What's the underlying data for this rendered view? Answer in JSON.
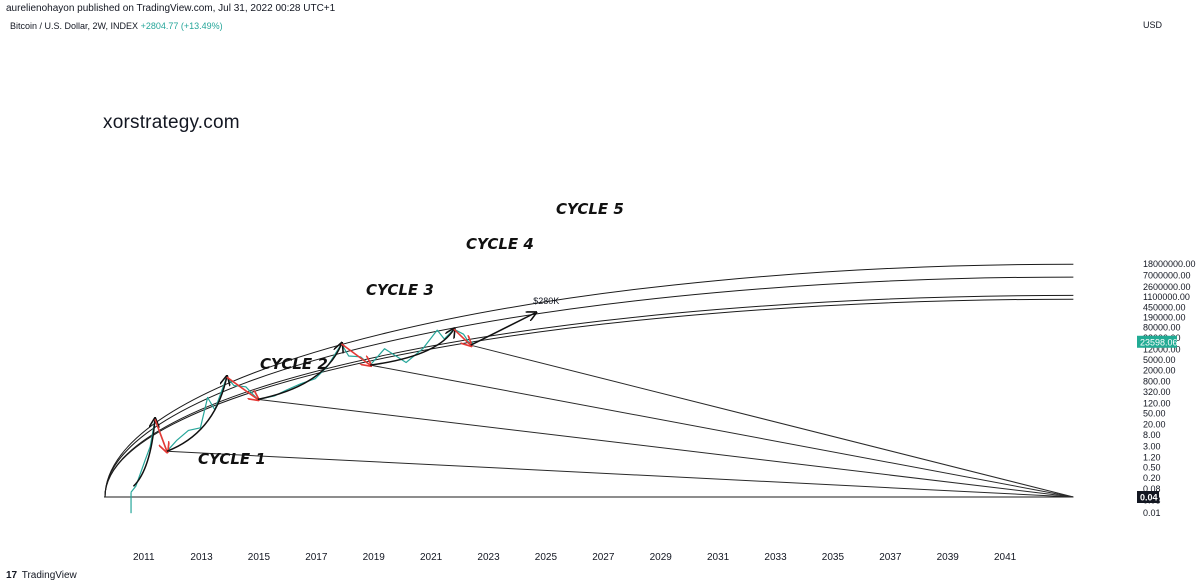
{
  "header": {
    "publisher_line": "aurelienohayon published on TradingView.com, Jul 31, 2022 00:28 UTC+1",
    "symbol": "Bitcoin / U.S. Dollar, 2W, INDEX",
    "change": "+2804.77 (+13.49%)"
  },
  "watermark": "xorstrategy.com",
  "footer": {
    "logo": "17",
    "brand": "TradingView"
  },
  "chart_data": {
    "type": "line",
    "currency": "USD",
    "y_scale": "log",
    "y_ticks": [
      "18000000.00",
      "7000000.00",
      "2600000.00",
      "1100000.00",
      "450000.00",
      "190000.00",
      "80000.00",
      "32000.00",
      "12000.00",
      "5000.00",
      "2000.00",
      "800.00",
      "320.00",
      "120.00",
      "50.00",
      "20.00",
      "8.00",
      "3.00",
      "1.20",
      "0.50",
      "0.20",
      "0.08",
      "0.03",
      "0.01"
    ],
    "x_ticks": [
      "2011",
      "2013",
      "2015",
      "2017",
      "2019",
      "2021",
      "2023",
      "2025",
      "2027",
      "2029",
      "2031",
      "2033",
      "2035",
      "2037",
      "2039",
      "2041"
    ],
    "price_label": "23598.06",
    "level_label": "0.04",
    "annotations": {
      "target": "$280K",
      "cycles": [
        "CYCLE 1",
        "CYCLE 2",
        "CYCLE 3",
        "CYCLE 4",
        "CYCLE 5"
      ]
    },
    "cycle_lows": [
      {
        "date": "2011-11",
        "value": 2
      },
      {
        "date": "2015-01",
        "value": 170
      },
      {
        "date": "2018-12",
        "value": 3200
      },
      {
        "date": "2022-06",
        "value": 17600
      }
    ],
    "cycle_tops": [
      {
        "date": "2011-06",
        "value": 31
      },
      {
        "date": "2013-12",
        "value": 1150
      },
      {
        "date": "2017-12",
        "value": 19700
      },
      {
        "date": "2021-11",
        "value": 69000
      }
    ],
    "fan_origin": {
      "date": "2043-06",
      "value": 0.04
    },
    "price_series": [
      {
        "x": "2010-08",
        "y": 0.06
      },
      {
        "x": "2010-10",
        "y": 0.1
      },
      {
        "x": "2011-02",
        "y": 1
      },
      {
        "x": "2011-04",
        "y": 3
      },
      {
        "x": "2011-06",
        "y": 31
      },
      {
        "x": "2011-08",
        "y": 10
      },
      {
        "x": "2011-11",
        "y": 2
      },
      {
        "x": "2012-03",
        "y": 5
      },
      {
        "x": "2012-08",
        "y": 12
      },
      {
        "x": "2013-01",
        "y": 15
      },
      {
        "x": "2013-04",
        "y": 200
      },
      {
        "x": "2013-07",
        "y": 70
      },
      {
        "x": "2013-12",
        "y": 1150
      },
      {
        "x": "2014-03",
        "y": 560
      },
      {
        "x": "2014-08",
        "y": 500
      },
      {
        "x": "2015-01",
        "y": 170
      },
      {
        "x": "2015-08",
        "y": 230
      },
      {
        "x": "2016-01",
        "y": 380
      },
      {
        "x": "2016-07",
        "y": 650
      },
      {
        "x": "2017-01",
        "y": 1000
      },
      {
        "x": "2017-06",
        "y": 2800
      },
      {
        "x": "2017-12",
        "y": 19700
      },
      {
        "x": "2018-03",
        "y": 7000
      },
      {
        "x": "2018-08",
        "y": 6500
      },
      {
        "x": "2018-12",
        "y": 3200
      },
      {
        "x": "2019-06",
        "y": 13000
      },
      {
        "x": "2020-03",
        "y": 4000
      },
      {
        "x": "2020-10",
        "y": 13000
      },
      {
        "x": "2021-04",
        "y": 64000
      },
      {
        "x": "2021-07",
        "y": 30000
      },
      {
        "x": "2021-11",
        "y": 69000
      },
      {
        "x": "2022-03",
        "y": 45000
      },
      {
        "x": "2022-06",
        "y": 17600
      },
      {
        "x": "2022-07",
        "y": 23598.06
      }
    ]
  }
}
